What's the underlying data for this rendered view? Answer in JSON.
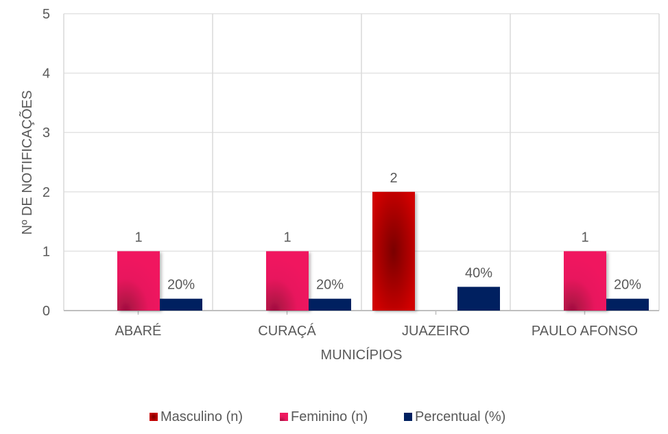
{
  "chart_data": {
    "type": "bar",
    "title": "",
    "xlabel": "MUNICÍPIOS",
    "ylabel": "Nº DE NOTIFICAÇÕES",
    "ylim": [
      0,
      5
    ],
    "yticks": [
      "0",
      "1",
      "2",
      "3",
      "4",
      "5"
    ],
    "categories": [
      "ABARÉ",
      "CURAÇÁ",
      "JUAZEIRO",
      "PAULO AFONSO"
    ],
    "series": [
      {
        "name": "Masculino (n)",
        "color": "#C00000",
        "values": [
          0,
          0,
          2,
          0
        ],
        "labels": [
          "",
          "",
          "2",
          ""
        ]
      },
      {
        "name": "Feminino (n)",
        "color": "#E8175D",
        "values": [
          1,
          1,
          0,
          1
        ],
        "labels": [
          "1",
          "1",
          "",
          "1"
        ]
      },
      {
        "name": "Percentual (%)",
        "color": "#002060",
        "values": [
          20,
          20,
          40,
          20
        ],
        "unit_scale": 0.01,
        "labels": [
          "20%",
          "20%",
          "40%",
          "20%"
        ]
      }
    ],
    "grid": true,
    "legend": "bottom"
  }
}
